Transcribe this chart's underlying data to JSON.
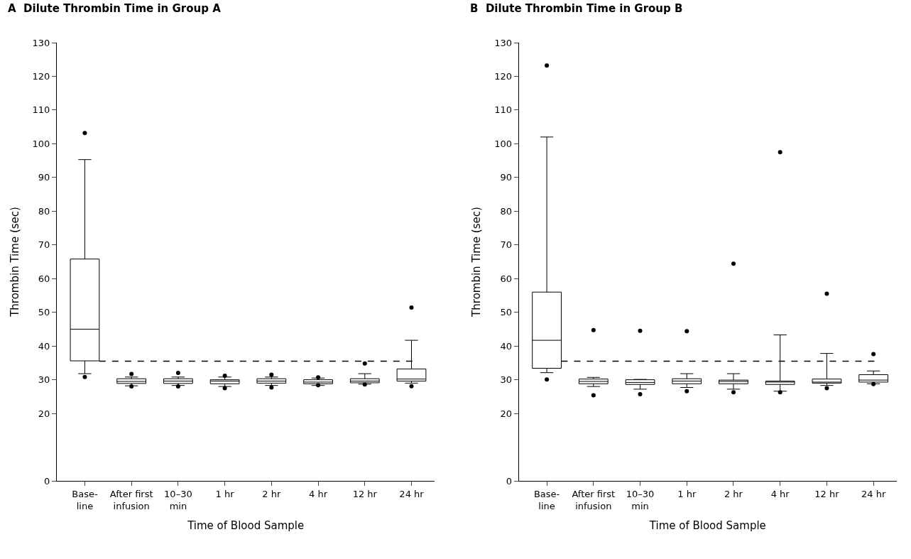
{
  "chart_data": [
    {
      "type": "box",
      "title": "A  Dilute Thrombin Time in Group A",
      "xlabel": "Time of Blood Sample",
      "ylabel": "Thrombin Time (sec)",
      "categories": [
        "Base-\nline",
        "After first\ninfusion",
        "10–30\nmin",
        "1 hr",
        "2 hr",
        "4 hr",
        "12 hr",
        "24 hr"
      ],
      "ylim": [
        0,
        130
      ],
      "yticks": [
        0,
        20,
        30,
        40,
        50,
        60,
        70,
        80,
        90,
        100,
        110,
        120,
        130
      ],
      "ref_lines": [
        {
          "axis": "y",
          "value": 35.5,
          "line_style": "dashed"
        }
      ],
      "boxes": [
        {
          "low": 31.8,
          "q1": 35.6,
          "median": 45,
          "q3": 65.8,
          "high": 95.3,
          "outliers": [
            103.2,
            30.8
          ]
        },
        {
          "low": 28.2,
          "q1": 28.9,
          "median": 29.5,
          "q3": 30.3,
          "high": 30.8,
          "outliers": [
            31.7,
            28
          ]
        },
        {
          "low": 28.3,
          "q1": 28.9,
          "median": 29.6,
          "q3": 30.3,
          "high": 30.8,
          "outliers": [
            32,
            28
          ]
        },
        {
          "low": 28,
          "q1": 28.8,
          "median": 29.6,
          "q3": 30,
          "high": 30.8,
          "outliers": [
            31.2,
            27.5
          ]
        },
        {
          "low": 28.3,
          "q1": 29,
          "median": 29.6,
          "q3": 30.3,
          "high": 30.8,
          "outliers": [
            31.5,
            27.7
          ]
        },
        {
          "low": 28.3,
          "q1": 28.8,
          "median": 29.3,
          "q3": 30,
          "high": 30.5,
          "outliers": [
            30.7,
            28.4
          ]
        },
        {
          "low": 28.7,
          "q1": 29.1,
          "median": 29.6,
          "q3": 30.3,
          "high": 31.8,
          "outliers": [
            34.8,
            28.6
          ]
        },
        {
          "low": 29,
          "q1": 29.6,
          "median": 30.2,
          "q3": 33.2,
          "high": 41.7,
          "outliers": [
            51.4,
            28.1
          ]
        }
      ]
    },
    {
      "type": "box",
      "title": "B  Dilute Thrombin Time in Group B",
      "xlabel": "Time of Blood Sample",
      "ylabel": "Thrombin Time (sec)",
      "categories": [
        "Base-\nline",
        "After first\ninfusion",
        "10–30\nmin",
        "1 hr",
        "2 hr",
        "4 hr",
        "12 hr",
        "24 hr"
      ],
      "ylim": [
        0,
        130
      ],
      "yticks": [
        0,
        20,
        30,
        40,
        50,
        60,
        70,
        80,
        90,
        100,
        110,
        120,
        130
      ],
      "ref_lines": [
        {
          "axis": "y",
          "value": 35.5,
          "line_style": "dashed"
        }
      ],
      "boxes": [
        {
          "low": 32.1,
          "q1": 33.4,
          "median": 41.7,
          "q3": 56,
          "high": 102,
          "outliers": [
            123.2,
            30.1
          ]
        },
        {
          "low": 28,
          "q1": 28.8,
          "median": 29.5,
          "q3": 30.2,
          "high": 30.7,
          "outliers": [
            44.7,
            25.4
          ]
        },
        {
          "low": 27.2,
          "q1": 28.6,
          "median": 29.2,
          "q3": 30,
          "high": 30.1,
          "outliers": [
            44.5,
            25.7
          ]
        },
        {
          "low": 27.7,
          "q1": 28.8,
          "median": 29.6,
          "q3": 30.3,
          "high": 31.8,
          "outliers": [
            44.4,
            26.6
          ]
        },
        {
          "low": 27.2,
          "q1": 28.8,
          "median": 29.5,
          "q3": 29.9,
          "high": 31.8,
          "outliers": [
            64.4,
            26.3
          ]
        },
        {
          "low": 26.6,
          "q1": 28.6,
          "median": 29.3,
          "q3": 29.6,
          "high": 43.3,
          "outliers": [
            97.5,
            26.3
          ]
        },
        {
          "low": 28.3,
          "q1": 29,
          "median": 29.3,
          "q3": 30.2,
          "high": 37.8,
          "outliers": [
            55.5,
            27.5
          ]
        },
        {
          "low": 28.8,
          "q1": 29.3,
          "median": 29.9,
          "q3": 31.5,
          "high": 32.6,
          "outliers": [
            37.6,
            28.7
          ]
        }
      ]
    }
  ]
}
